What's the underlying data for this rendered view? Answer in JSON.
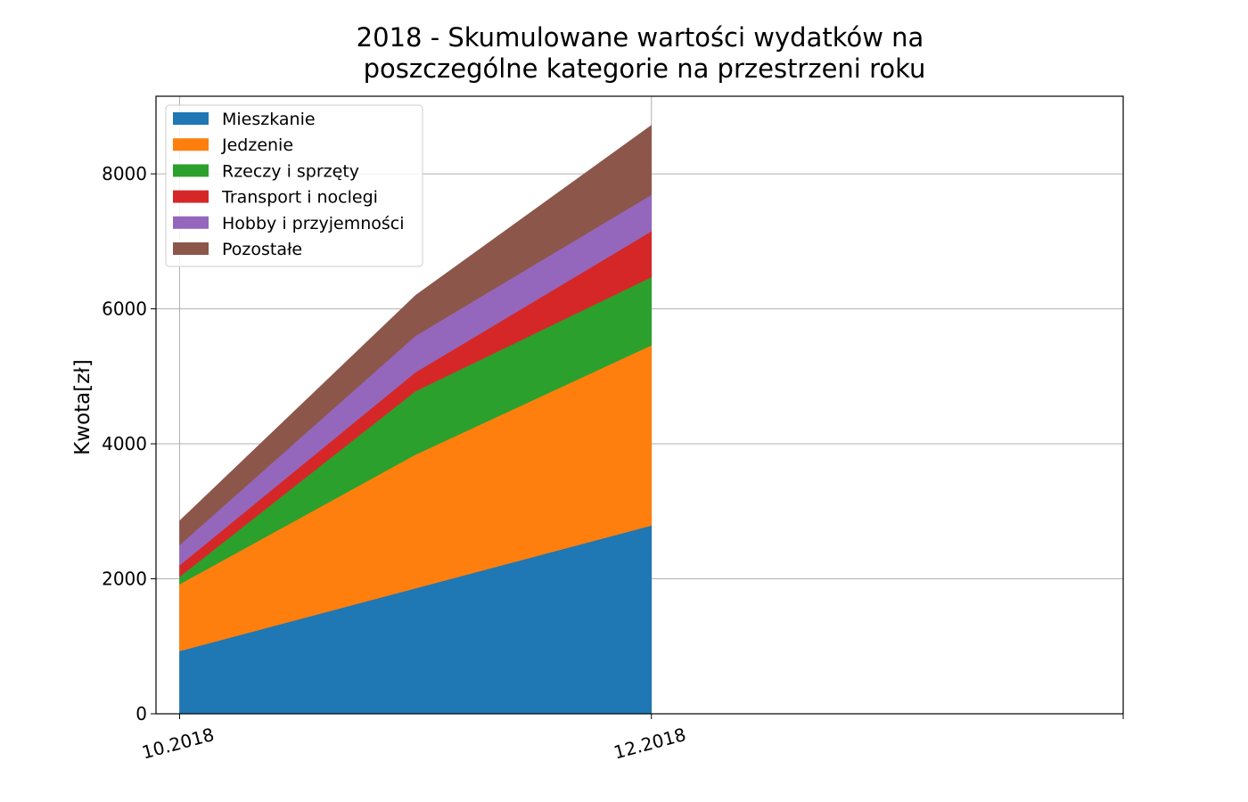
{
  "chart_data": {
    "type": "area",
    "stacked": true,
    "title_lines": [
      "2018 - Skumulowane wartości wydatków na",
      "poszczególne kategorie na przestrzeni roku"
    ],
    "xlabel": "",
    "ylabel": "Kwota[zł]",
    "x_ticks": [
      "10.2018",
      "12.2018"
    ],
    "x": [
      "10.2018",
      "11.2018",
      "12.2018"
    ],
    "x_range": [
      "10.2018",
      "02.2019"
    ],
    "ylim": [
      0,
      9150
    ],
    "y_ticks": [
      0,
      2000,
      4000,
      6000,
      8000
    ],
    "grid": true,
    "legend_position": "top-left",
    "series": [
      {
        "name": "Mieszkanie",
        "color": "#1f77b4",
        "values": [
          930,
          1860,
          2790
        ]
      },
      {
        "name": "Jedzenie",
        "color": "#ff7f0e",
        "values": [
          990,
          1980,
          2670
        ]
      },
      {
        "name": "Rzeczy i sprzęty",
        "color": "#2ca02c",
        "values": [
          110,
          940,
          1010
        ]
      },
      {
        "name": "Transport i noclegi",
        "color": "#d62728",
        "values": [
          170,
          280,
          680
        ]
      },
      {
        "name": "Hobby i przyjemności",
        "color": "#9467bd",
        "values": [
          300,
          540,
          540
        ]
      },
      {
        "name": "Pozostałe",
        "color": "#8c564b",
        "values": [
          360,
          600,
          1030
        ]
      }
    ]
  }
}
